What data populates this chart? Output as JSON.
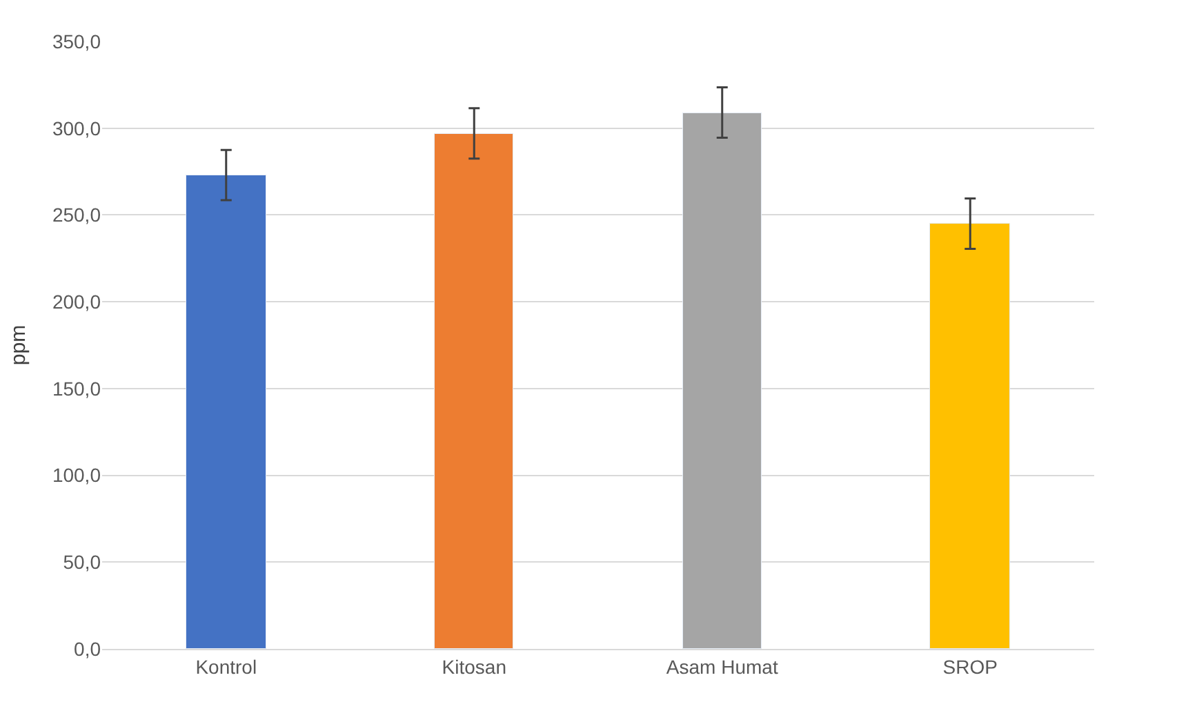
{
  "chart_data": {
    "type": "bar",
    "ylabel": "ppm",
    "categories": [
      "Kontrol",
      "Kitosan",
      "Asam Humat",
      "SROP"
    ],
    "values": [
      273,
      297,
      309,
      245
    ],
    "colors": [
      "#4472c4",
      "#ed7d31",
      "#a5a5a5",
      "#ffc000"
    ],
    "errors": [
      14.5,
      14.5,
      14.5,
      14.5
    ],
    "ylim": [
      0,
      350
    ],
    "yticks": [
      {
        "value": 0,
        "label": "0,0"
      },
      {
        "value": 50,
        "label": "50,0"
      },
      {
        "value": 100,
        "label": "100,0"
      },
      {
        "value": 150,
        "label": "150,0"
      },
      {
        "value": 200,
        "label": "200,0"
      },
      {
        "value": 250,
        "label": "250,0"
      },
      {
        "value": 300,
        "label": "300,0"
      },
      {
        "value": 350,
        "label": "350,0"
      }
    ],
    "grid": "y"
  }
}
